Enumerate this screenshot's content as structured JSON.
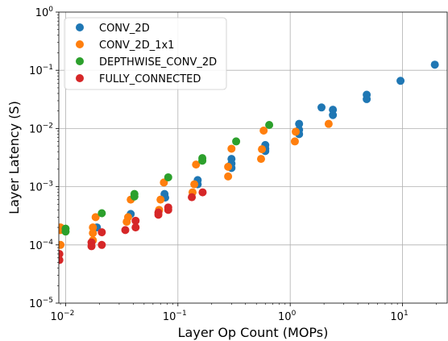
{
  "chart_data": {
    "type": "scatter",
    "title": "",
    "xlabel": "Layer Op Count (MOPs)",
    "ylabel": "Layer Latency (S)",
    "xscale": "log",
    "yscale": "log",
    "xlim": [
      0.0087,
      25
    ],
    "ylim": [
      1e-05,
      1
    ],
    "grid": true,
    "legend_position": "top-left",
    "x_ticks": [
      {
        "value": 0.01,
        "base": "10",
        "exp": "−2"
      },
      {
        "value": 0.1,
        "base": "10",
        "exp": "−1"
      },
      {
        "value": 1,
        "base": "10",
        "exp": "0"
      },
      {
        "value": 10,
        "base": "10",
        "exp": "1"
      }
    ],
    "y_ticks": [
      {
        "value": 1e-05,
        "base": "10",
        "exp": "−5"
      },
      {
        "value": 0.0001,
        "base": "10",
        "exp": "−4"
      },
      {
        "value": 0.001,
        "base": "10",
        "exp": "−3"
      },
      {
        "value": 0.01,
        "base": "10",
        "exp": "−2"
      },
      {
        "value": 0.1,
        "base": "10",
        "exp": "−1"
      },
      {
        "value": 1,
        "base": "10",
        "exp": "0"
      }
    ],
    "series": [
      {
        "name": "CONV_2D",
        "color": "#1f77b4",
        "points": [
          [
            0.019,
            0.0002
          ],
          [
            0.038,
            0.00034
          ],
          [
            0.076,
            0.00075
          ],
          [
            0.077,
            0.00065
          ],
          [
            0.15,
            0.0013
          ],
          [
            0.15,
            0.0011
          ],
          [
            0.3,
            0.003
          ],
          [
            0.3,
            0.0025
          ],
          [
            0.3,
            0.0021
          ],
          [
            0.6,
            0.0052
          ],
          [
            0.6,
            0.0045
          ],
          [
            0.6,
            0.0041
          ],
          [
            1.2,
            0.012
          ],
          [
            1.2,
            0.0095
          ],
          [
            1.2,
            0.008
          ],
          [
            1.9,
            0.023
          ],
          [
            2.4,
            0.021
          ],
          [
            2.4,
            0.017
          ],
          [
            4.8,
            0.038
          ],
          [
            4.8,
            0.032
          ],
          [
            9.6,
            0.066
          ],
          [
            19.4,
            0.125
          ]
        ]
      },
      {
        "name": "CONV_2D_1x1",
        "color": "#ff7f0e",
        "points": [
          [
            0.009,
            0.0002
          ],
          [
            0.009,
            0.00018
          ],
          [
            0.009,
            0.0001
          ],
          [
            0.0175,
            0.0002
          ],
          [
            0.0175,
            0.00016
          ],
          [
            0.0175,
            0.00012
          ],
          [
            0.0185,
            0.0003
          ],
          [
            0.035,
            0.00025
          ],
          [
            0.036,
            0.0003
          ],
          [
            0.038,
            0.0006
          ],
          [
            0.068,
            0.0004
          ],
          [
            0.07,
            0.0006
          ],
          [
            0.075,
            0.00118
          ],
          [
            0.135,
            0.0008
          ],
          [
            0.14,
            0.0011
          ],
          [
            0.145,
            0.0024
          ],
          [
            0.28,
            0.0015
          ],
          [
            0.28,
            0.0022
          ],
          [
            0.3,
            0.0045
          ],
          [
            0.55,
            0.003
          ],
          [
            0.56,
            0.0044
          ],
          [
            0.58,
            0.0092
          ],
          [
            1.1,
            0.006
          ],
          [
            1.12,
            0.0088
          ],
          [
            2.2,
            0.012
          ]
        ]
      },
      {
        "name": "DEPTHWISE_CONV_2D",
        "color": "#2ca02c",
        "points": [
          [
            0.01,
            0.00019
          ],
          [
            0.01,
            0.00017
          ],
          [
            0.021,
            0.00035
          ],
          [
            0.041,
            0.00075
          ],
          [
            0.041,
            0.00068
          ],
          [
            0.082,
            0.00145
          ],
          [
            0.165,
            0.0031
          ],
          [
            0.165,
            0.0028
          ],
          [
            0.33,
            0.006
          ],
          [
            0.65,
            0.0115
          ]
        ]
      },
      {
        "name": "FULLY_CONNECTED",
        "color": "#d62728",
        "points": [
          [
            0.0088,
            7e-05
          ],
          [
            0.0088,
            5.5e-05
          ],
          [
            0.017,
            0.00011
          ],
          [
            0.017,
            9.5e-05
          ],
          [
            0.021,
            0.000165
          ],
          [
            0.021,
            0.0001
          ],
          [
            0.034,
            0.00018
          ],
          [
            0.042,
            0.00026
          ],
          [
            0.042,
            0.0002
          ],
          [
            0.067,
            0.00036
          ],
          [
            0.067,
            0.00033
          ],
          [
            0.082,
            0.00044
          ],
          [
            0.082,
            0.0004
          ],
          [
            0.133,
            0.00066
          ],
          [
            0.166,
            0.0008
          ]
        ]
      }
    ]
  }
}
